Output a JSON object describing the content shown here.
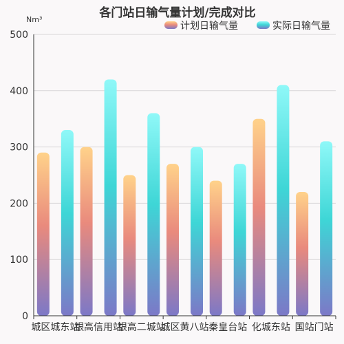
{
  "chart_data": {
    "type": "bar",
    "title": "各门站日输气量计划/完成对比",
    "ylabel": "Nm³",
    "xlabel": "",
    "ylim": [
      0,
      500
    ],
    "yticks": [
      0,
      100,
      200,
      300,
      400,
      500
    ],
    "grid": true,
    "legend_position": "top-right",
    "categories": [
      "城区城东站",
      "银高信用站",
      "银高二城站",
      "城区黄八站",
      "秦皇台站",
      "化城东站",
      "国站门站"
    ],
    "series": [
      {
        "name": "计划日输气量",
        "values": [
          290,
          300,
          250,
          270,
          240,
          350,
          220
        ],
        "gradient": [
          "#ffd28a",
          "#e98a7d",
          "#7c78c7"
        ]
      },
      {
        "name": "实际日输气量",
        "values": [
          330,
          420,
          360,
          300,
          270,
          410,
          310
        ],
        "gradient": [
          "#8ff8f8",
          "#3ed6d6",
          "#7c78c7"
        ]
      }
    ]
  }
}
